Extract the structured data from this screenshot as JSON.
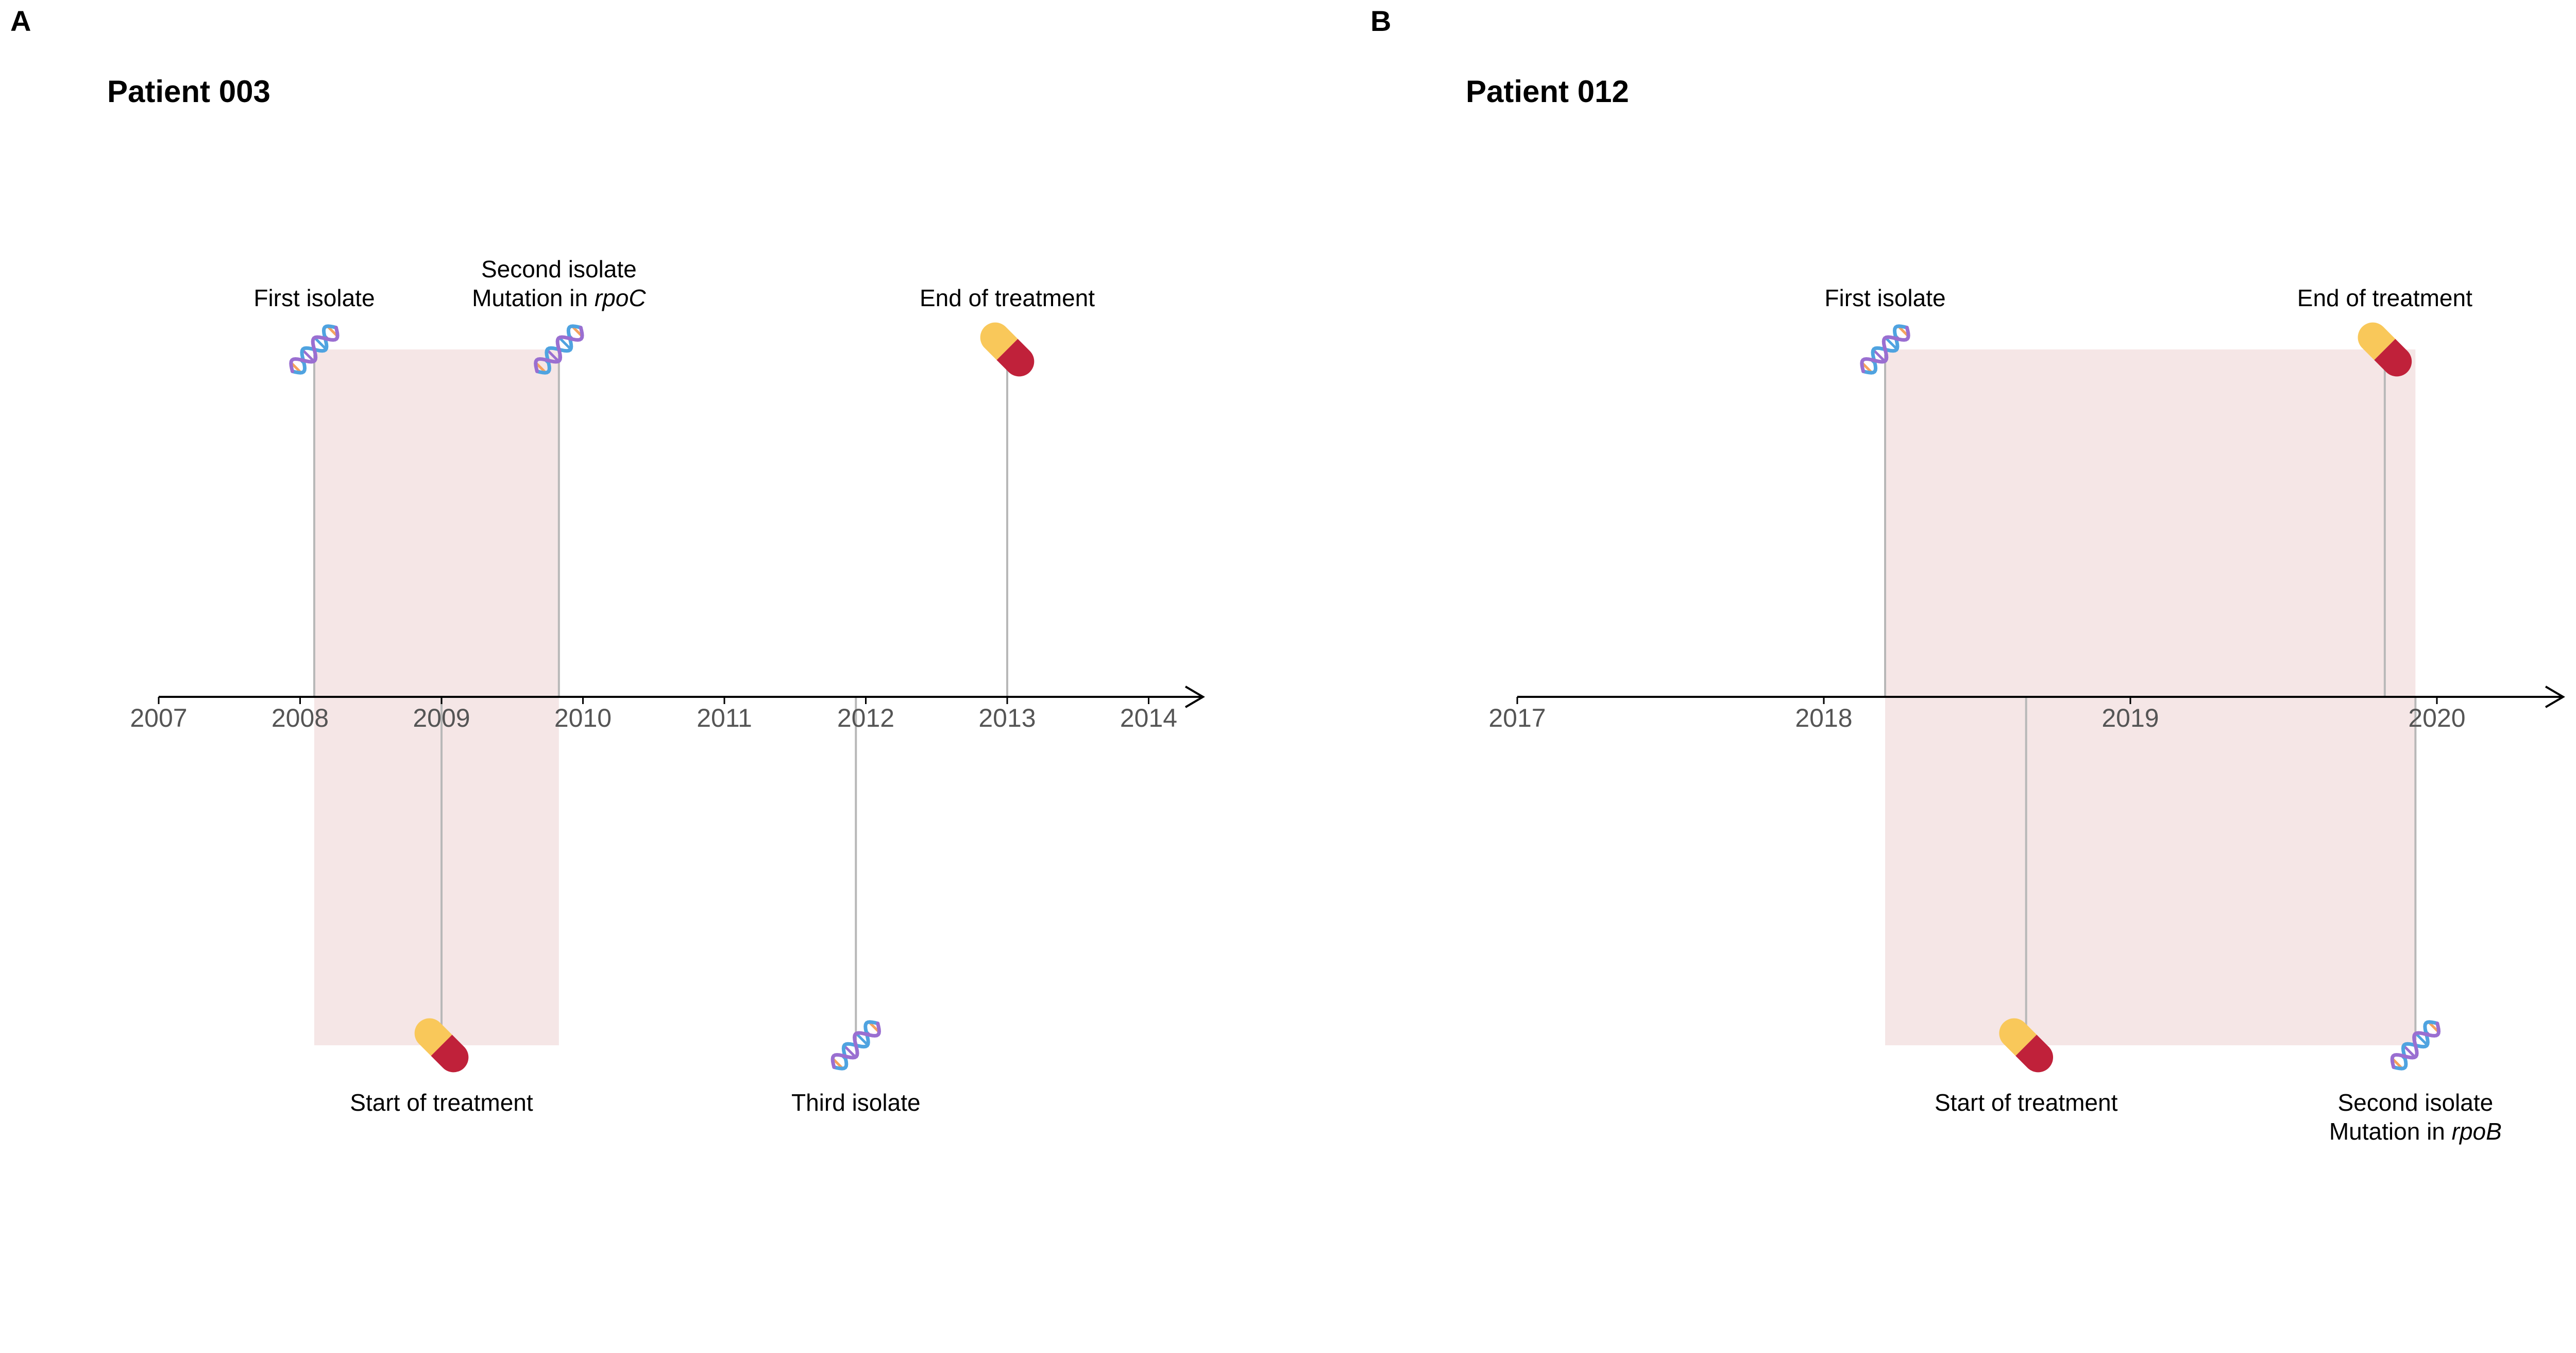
{
  "panels": [
    {
      "letter": "A",
      "title": "Patient 003",
      "chart_data": {
        "type": "timeline",
        "x_ticks": [
          "2007",
          "2008",
          "2009",
          "2010",
          "2011",
          "2012",
          "2013",
          "2014"
        ],
        "xlim": [
          2007,
          2014.4
        ],
        "treatment_period": [
          2008.1,
          2009.83
        ],
        "events": [
          {
            "x": 2008.1,
            "side": "above",
            "icon": "dna-icon",
            "label": [
              "First isolate"
            ]
          },
          {
            "x": 2009.83,
            "side": "above",
            "icon": "dna-icon",
            "label": [
              "Second isolate",
              "Mutation in ",
              "rpoC"
            ]
          },
          {
            "x": 2013.0,
            "side": "above",
            "icon": "pill-icon",
            "label": [
              "End of treatment"
            ]
          },
          {
            "x": 2009.0,
            "side": "below",
            "icon": "pill-icon",
            "label": [
              "Start of treatment"
            ]
          },
          {
            "x": 2011.93,
            "side": "below",
            "icon": "dna-icon",
            "label": [
              "Third isolate"
            ]
          }
        ]
      }
    },
    {
      "letter": "B",
      "title": "Patient 012",
      "chart_data": {
        "type": "timeline",
        "x_ticks": [
          "2017",
          "2018",
          "2019",
          "2020"
        ],
        "xlim": [
          2017,
          2020.4
        ],
        "treatment_period": [
          2018.2,
          2019.93
        ],
        "events": [
          {
            "x": 2018.2,
            "side": "above",
            "icon": "dna-icon",
            "label": [
              "First isolate"
            ]
          },
          {
            "x": 2019.83,
            "side": "above",
            "icon": "pill-icon",
            "label": [
              "End of treatment"
            ]
          },
          {
            "x": 2018.66,
            "side": "below",
            "icon": "pill-icon",
            "label": [
              "Start of treatment"
            ]
          },
          {
            "x": 2019.93,
            "side": "below",
            "icon": "dna-icon",
            "label": [
              "Second isolate",
              "Mutation in ",
              "rpoB"
            ]
          }
        ]
      }
    }
  ],
  "colors": {
    "shade": "#f5e6e6",
    "stem": "#b8b8b8",
    "axis": "#000000",
    "pill_yellow": "#f9c85a",
    "pill_red": "#c0213a",
    "dna_blue": "#4fa3e0",
    "dna_purple": "#9a6fd1",
    "dna_orange": "#f5a25d"
  }
}
